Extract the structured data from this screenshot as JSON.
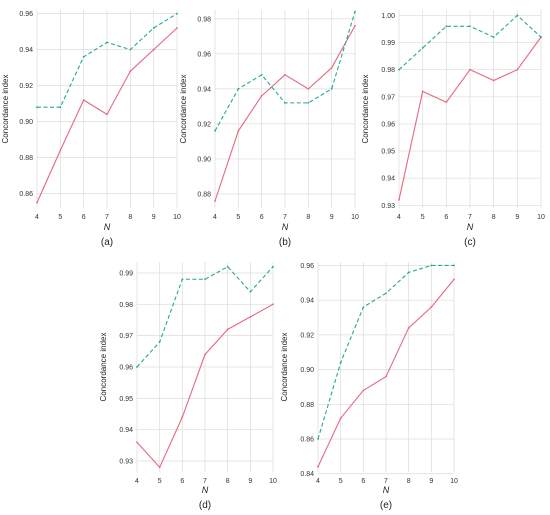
{
  "chart_data": [
    {
      "type": "line",
      "caption": "(a)",
      "xlabel": "N",
      "ylabel": "Concordance index",
      "x": [
        4,
        5,
        6,
        7,
        8,
        9,
        10
      ],
      "xlim": [
        4,
        10
      ],
      "ylim": [
        0.852,
        0.962
      ],
      "yticks": [
        0.86,
        0.88,
        0.9,
        0.92,
        0.94,
        0.96
      ],
      "ytick_labels": [
        "0.86",
        "0.88",
        "0.90",
        "0.92",
        "0.94",
        "0.96"
      ],
      "grid": true,
      "series": [
        {
          "style": "solid",
          "color": "#e8677e",
          "values": [
            0.855,
            0.884,
            0.912,
            0.904,
            0.928,
            0.94,
            0.952
          ]
        },
        {
          "style": "dashed",
          "color": "#26a797",
          "values": [
            0.908,
            0.908,
            0.936,
            0.944,
            0.94,
            0.952,
            0.96
          ]
        }
      ]
    },
    {
      "type": "line",
      "caption": "(b)",
      "xlabel": "N",
      "ylabel": "Concordance index",
      "x": [
        4,
        5,
        6,
        7,
        8,
        9,
        10
      ],
      "xlim": [
        4,
        10
      ],
      "ylim": [
        0.872,
        0.985
      ],
      "yticks": [
        0.88,
        0.9,
        0.92,
        0.94,
        0.96,
        0.98
      ],
      "ytick_labels": [
        "0.88",
        "0.90",
        "0.92",
        "0.94",
        "0.96",
        "0.98"
      ],
      "grid": true,
      "series": [
        {
          "style": "solid",
          "color": "#e8677e",
          "values": [
            0.876,
            0.916,
            0.936,
            0.948,
            0.94,
            0.952,
            0.976
          ]
        },
        {
          "style": "dashed",
          "color": "#26a797",
          "values": [
            0.916,
            0.94,
            0.948,
            0.932,
            0.932,
            0.94,
            0.984
          ]
        }
      ]
    },
    {
      "type": "line",
      "caption": "(c)",
      "xlabel": "N",
      "ylabel": "Concordance index",
      "x": [
        4,
        5,
        6,
        7,
        8,
        9,
        10
      ],
      "xlim": [
        4,
        10
      ],
      "ylim": [
        0.929,
        1.002
      ],
      "yticks": [
        0.93,
        0.94,
        0.95,
        0.96,
        0.97,
        0.98,
        0.99,
        1.0
      ],
      "ytick_labels": [
        "0.93",
        "0.94",
        "0.95",
        "0.96",
        "0.97",
        "0.98",
        "0.99",
        "1.00"
      ],
      "grid": true,
      "series": [
        {
          "style": "solid",
          "color": "#e8677e",
          "values": [
            0.932,
            0.972,
            0.968,
            0.98,
            0.976,
            0.98,
            0.992
          ]
        },
        {
          "style": "dashed",
          "color": "#26a797",
          "values": [
            0.98,
            0.988,
            0.996,
            0.996,
            0.992,
            1.0,
            0.992
          ]
        }
      ]
    },
    {
      "type": "line",
      "caption": "(d)",
      "xlabel": "N",
      "ylabel": "Concordance index",
      "x": [
        4,
        5,
        6,
        7,
        8,
        9,
        10
      ],
      "xlim": [
        4,
        10
      ],
      "ylim": [
        0.9265,
        0.9935
      ],
      "yticks": [
        0.93,
        0.94,
        0.95,
        0.96,
        0.97,
        0.98,
        0.99
      ],
      "ytick_labels": [
        "0.93",
        "0.94",
        "0.95",
        "0.96",
        "0.97",
        "0.98",
        "0.99"
      ],
      "grid": true,
      "series": [
        {
          "style": "solid",
          "color": "#e8677e",
          "values": [
            0.936,
            0.928,
            0.944,
            0.964,
            0.972,
            0.976,
            0.98
          ]
        },
        {
          "style": "dashed",
          "color": "#26a797",
          "values": [
            0.96,
            0.968,
            0.988,
            0.988,
            0.992,
            0.984,
            0.992
          ]
        }
      ]
    },
    {
      "type": "line",
      "caption": "(e)",
      "xlabel": "N",
      "ylabel": "Concordance index",
      "x": [
        4,
        5,
        6,
        7,
        8,
        9,
        10
      ],
      "xlim": [
        4,
        10
      ],
      "ylim": [
        0.841,
        0.962
      ],
      "yticks": [
        0.84,
        0.86,
        0.88,
        0.9,
        0.92,
        0.94,
        0.96
      ],
      "ytick_labels": [
        "0.84",
        "0.86",
        "0.88",
        "0.90",
        "0.92",
        "0.94",
        "0.96"
      ],
      "grid": true,
      "series": [
        {
          "style": "solid",
          "color": "#e8677e",
          "values": [
            0.844,
            0.872,
            0.888,
            0.896,
            0.924,
            0.936,
            0.952
          ]
        },
        {
          "style": "dashed",
          "color": "#26a797",
          "values": [
            0.86,
            0.904,
            0.936,
            0.944,
            0.956,
            0.96,
            0.96
          ]
        }
      ]
    }
  ]
}
